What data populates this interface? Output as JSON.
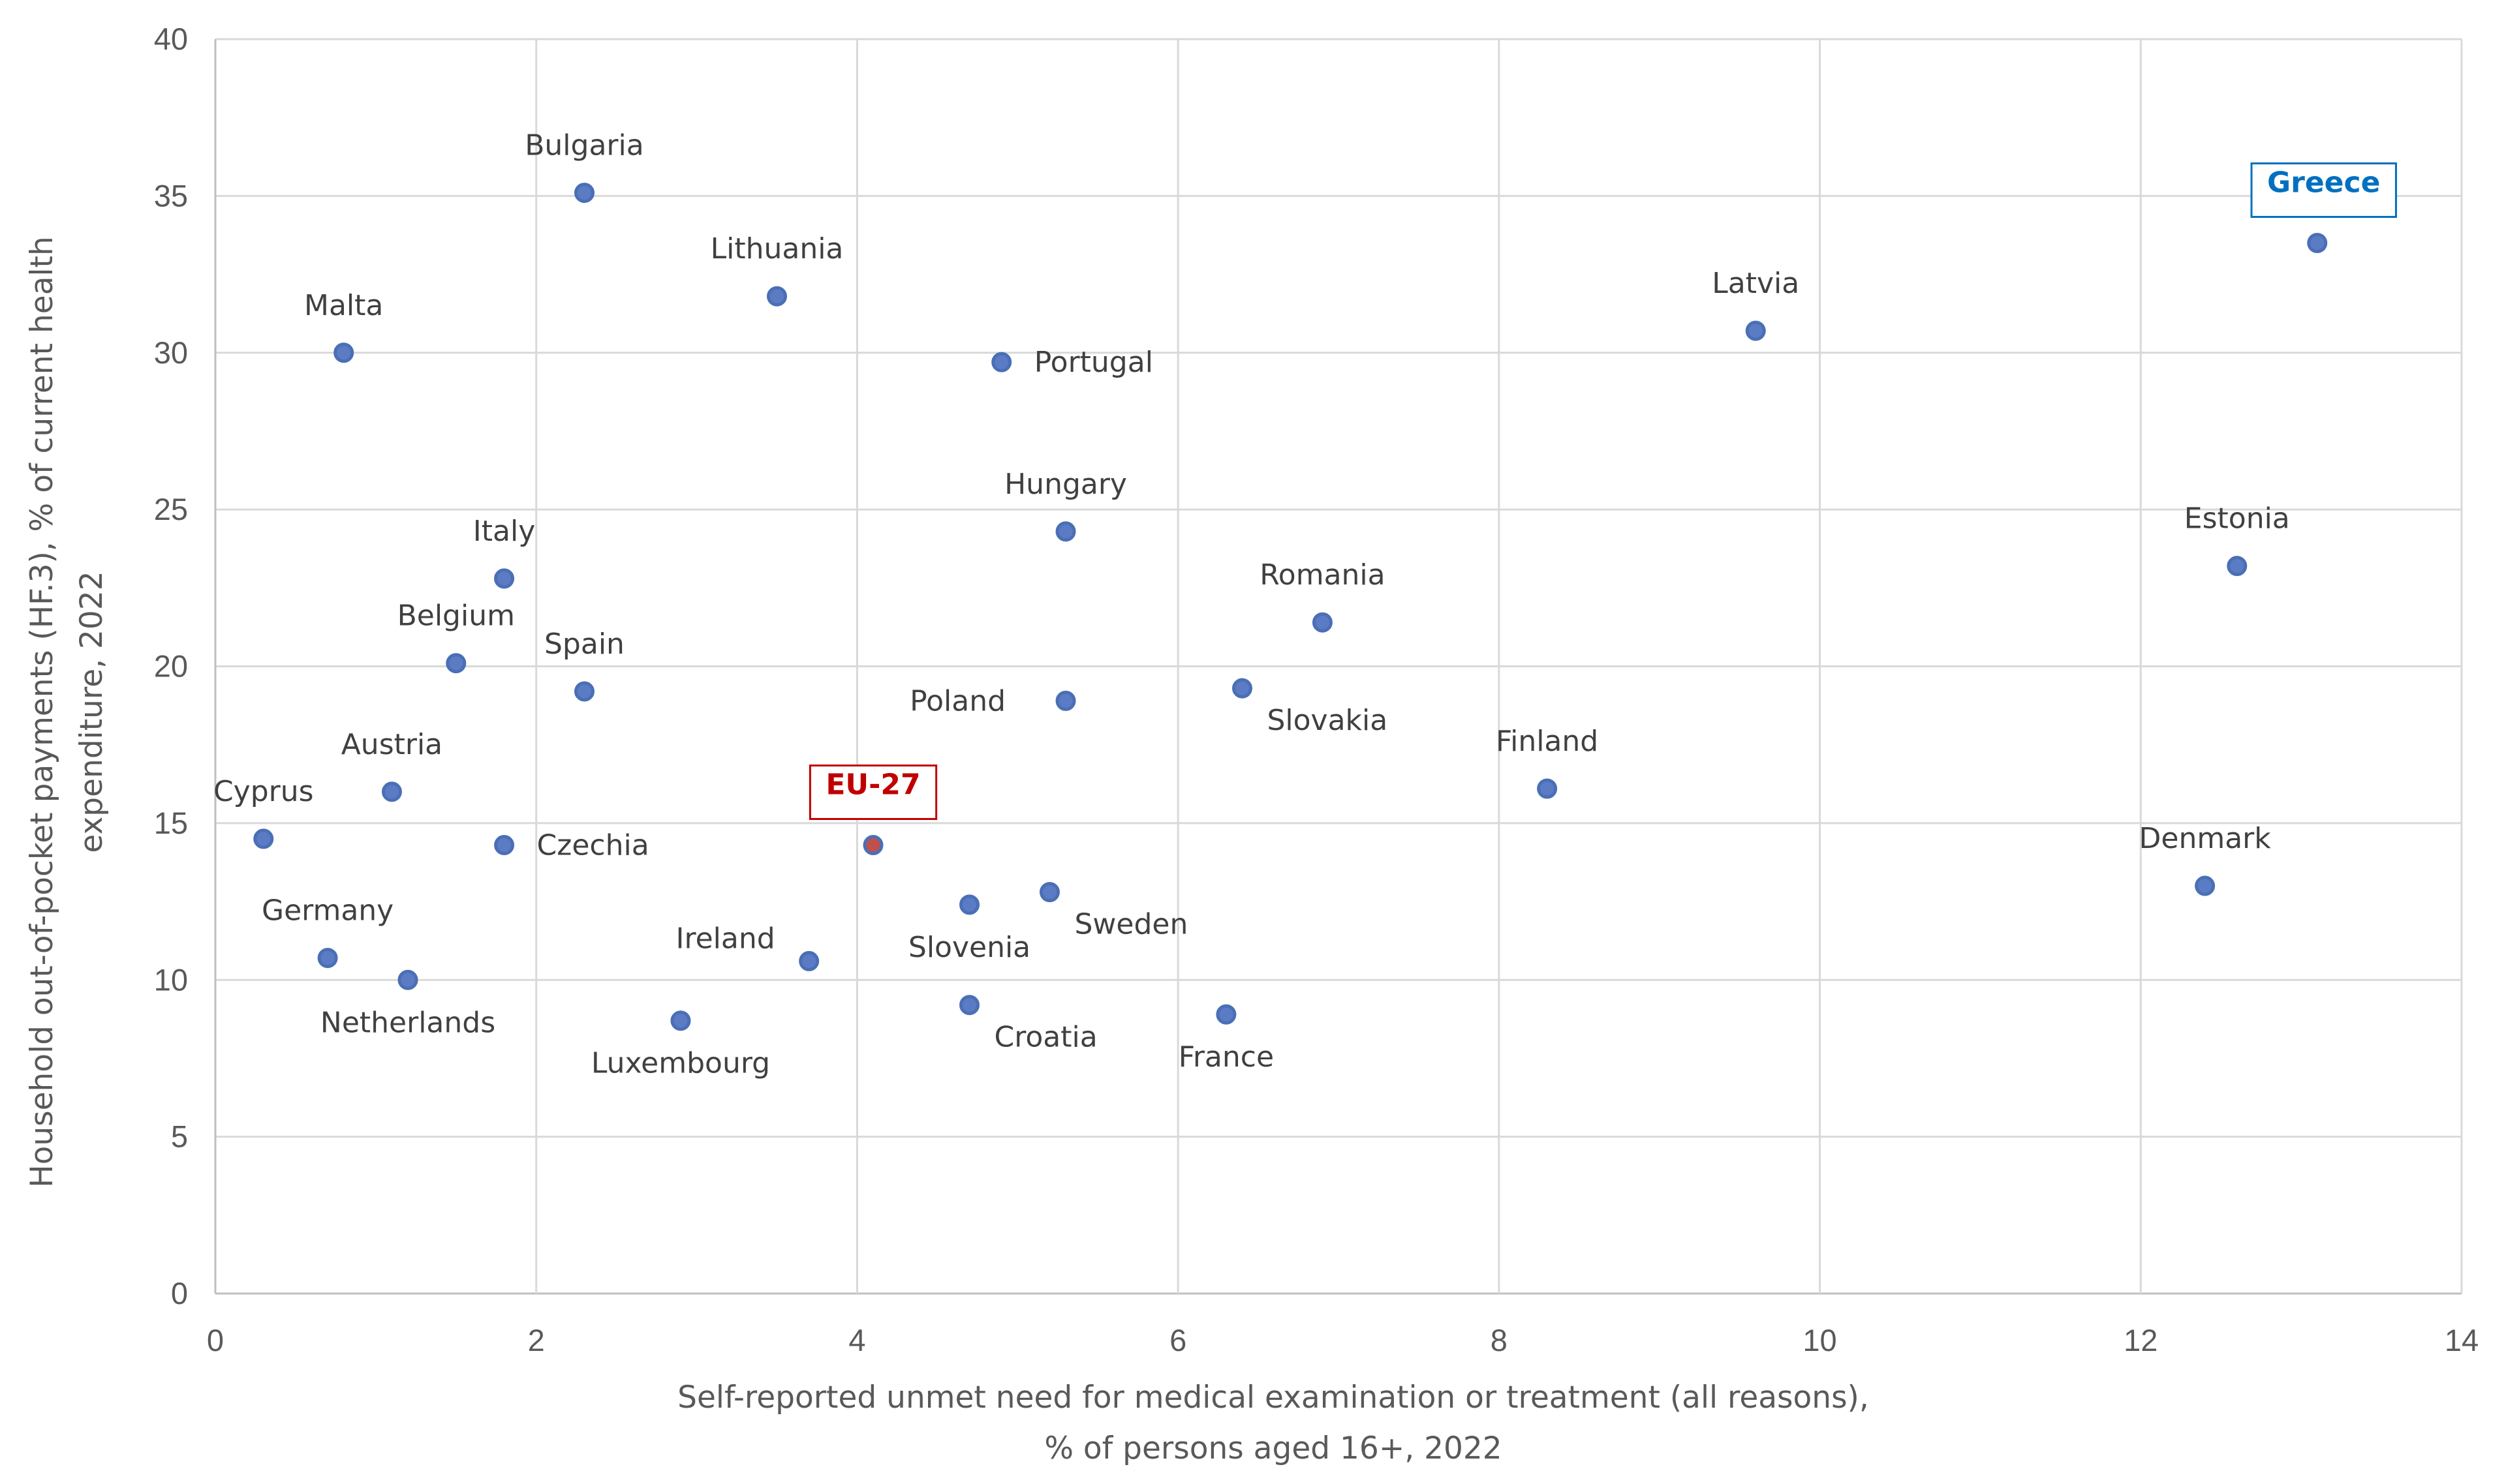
{
  "chart_data": {
    "type": "scatter",
    "xlabel_lines": [
      "Self-reported unmet need for medical examination or treatment (all reasons),",
      "% of persons aged 16+, 2022"
    ],
    "ylabel_lines": [
      "Household out-of-pocket payments (HF.3), % of current health",
      "expenditure, 2022"
    ],
    "xlim": [
      0,
      14
    ],
    "ylim": [
      0,
      40
    ],
    "xticks": [
      0,
      2,
      4,
      6,
      8,
      10,
      12,
      14
    ],
    "yticks": [
      0,
      5,
      10,
      15,
      20,
      25,
      30,
      35,
      40
    ],
    "grid": true,
    "colors": {
      "marker_fill": "#5b7cc4",
      "marker_stroke": "#4a6fb5",
      "eu_fill": "#c0504d",
      "eu_text": "#c00000",
      "greece_text": "#0070c0",
      "grid": "#d9d9d9",
      "axis": "#bfbfbf"
    },
    "points": [
      {
        "name": "Bulgaria",
        "x": 2.3,
        "y": 35.1,
        "pos": "above"
      },
      {
        "name": "Lithuania",
        "x": 3.5,
        "y": 31.8,
        "pos": "above"
      },
      {
        "name": "Malta",
        "x": 0.8,
        "y": 30.0,
        "pos": "above"
      },
      {
        "name": "Portugal",
        "x": 4.9,
        "y": 29.7,
        "pos": "right"
      },
      {
        "name": "Latvia",
        "x": 9.6,
        "y": 30.7,
        "pos": "above"
      },
      {
        "name": "Greece",
        "x": 13.1,
        "y": 33.5,
        "pos": "box-above",
        "highlight": "greece"
      },
      {
        "name": "Hungary",
        "x": 5.3,
        "y": 24.3,
        "pos": "above"
      },
      {
        "name": "Estonia",
        "x": 12.6,
        "y": 23.2,
        "pos": "above"
      },
      {
        "name": "Italy",
        "x": 1.8,
        "y": 22.8,
        "pos": "above"
      },
      {
        "name": "Romania",
        "x": 6.9,
        "y": 21.4,
        "pos": "above"
      },
      {
        "name": "Belgium",
        "x": 1.5,
        "y": 20.1,
        "pos": "above"
      },
      {
        "name": "Spain",
        "x": 2.3,
        "y": 19.2,
        "pos": "above"
      },
      {
        "name": "Poland",
        "x": 5.3,
        "y": 18.9,
        "pos": "left"
      },
      {
        "name": "Slovakia",
        "x": 6.4,
        "y": 19.3,
        "pos": "below-right"
      },
      {
        "name": "Finland",
        "x": 8.3,
        "y": 16.1,
        "pos": "above"
      },
      {
        "name": "Austria",
        "x": 1.1,
        "y": 16.0,
        "pos": "above"
      },
      {
        "name": "Cyprus",
        "x": 0.3,
        "y": 14.5,
        "pos": "above"
      },
      {
        "name": "Czechia",
        "x": 1.8,
        "y": 14.3,
        "pos": "right"
      },
      {
        "name": "EU-27",
        "x": 4.1,
        "y": 14.3,
        "pos": "box-above",
        "highlight": "eu"
      },
      {
        "name": "Denmark",
        "x": 12.4,
        "y": 13.0,
        "pos": "above"
      },
      {
        "name": "Sweden",
        "x": 5.2,
        "y": 12.8,
        "pos": "below-right"
      },
      {
        "name": "Slovenia",
        "x": 4.7,
        "y": 12.4,
        "pos": "below"
      },
      {
        "name": "Germany",
        "x": 0.7,
        "y": 10.7,
        "pos": "above"
      },
      {
        "name": "Netherlands",
        "x": 1.2,
        "y": 10.0,
        "pos": "below"
      },
      {
        "name": "Ireland",
        "x": 3.7,
        "y": 10.6,
        "pos": "left-above"
      },
      {
        "name": "Luxembourg",
        "x": 2.9,
        "y": 8.7,
        "pos": "below"
      },
      {
        "name": "Croatia",
        "x": 4.7,
        "y": 9.2,
        "pos": "below-right"
      },
      {
        "name": "France",
        "x": 6.3,
        "y": 8.9,
        "pos": "below"
      }
    ]
  }
}
